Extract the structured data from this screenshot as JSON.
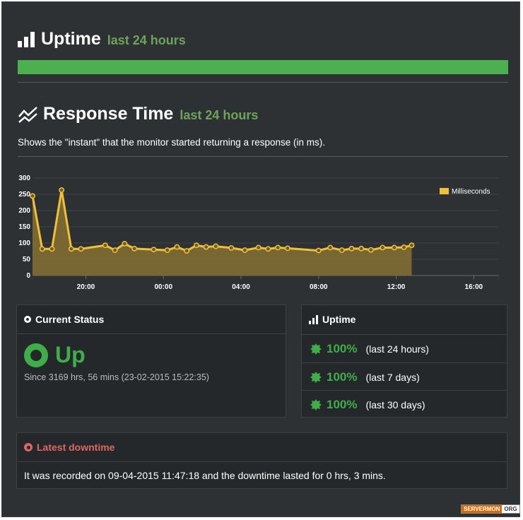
{
  "uptime_section": {
    "title": "Uptime",
    "period": "last 24 hours",
    "bar_fill_fraction": 1.0,
    "bar_color": "#4caf50"
  },
  "response_section": {
    "title": "Response Time",
    "period": "last 24 hours",
    "description": "Shows the \"instant\" that the monitor started returning a response (in ms)."
  },
  "chart_data": {
    "type": "area",
    "title": "",
    "xlabel": "",
    "ylabel": "",
    "ylim": [
      0,
      300
    ],
    "yticks": [
      "0",
      "50",
      "100",
      "150",
      "200",
      "250",
      "300"
    ],
    "xticks": [
      "20:00",
      "00:00",
      "04:00",
      "08:00",
      "12:00",
      "16:00"
    ],
    "xtick_hours": [
      20,
      24,
      28,
      32,
      36,
      40
    ],
    "xlim_hours": [
      17.25,
      41.3
    ],
    "grid": true,
    "legend_position": "top-right",
    "series": [
      {
        "name": "Milliseconds",
        "color": "#f2c037",
        "points": [
          [
            17.25,
            245
          ],
          [
            17.75,
            82
          ],
          [
            18.25,
            82
          ],
          [
            18.75,
            263
          ],
          [
            19.25,
            82
          ],
          [
            19.75,
            82
          ],
          [
            21.0,
            93
          ],
          [
            21.5,
            78
          ],
          [
            22.0,
            98
          ],
          [
            22.5,
            83
          ],
          [
            23.5,
            80
          ],
          [
            24.2,
            78
          ],
          [
            24.7,
            88
          ],
          [
            25.2,
            76
          ],
          [
            25.7,
            93
          ],
          [
            26.2,
            88
          ],
          [
            26.7,
            90
          ],
          [
            27.5,
            85
          ],
          [
            28.2,
            78
          ],
          [
            28.9,
            86
          ],
          [
            29.4,
            82
          ],
          [
            29.9,
            86
          ],
          [
            30.4,
            84
          ],
          [
            32.0,
            77
          ],
          [
            32.6,
            86
          ],
          [
            33.2,
            78
          ],
          [
            33.7,
            83
          ],
          [
            34.2,
            83
          ],
          [
            34.7,
            79
          ],
          [
            35.3,
            86
          ],
          [
            35.9,
            86
          ],
          [
            36.4,
            87
          ],
          [
            36.8,
            93
          ]
        ]
      }
    ]
  },
  "current_status": {
    "title": "Current Status",
    "status": "Up",
    "since": "Since 3169 hrs, 56 mins (23-02-2015 15:22:35)"
  },
  "uptime_panel": {
    "title": "Uptime",
    "rows": [
      {
        "percent": "100%",
        "period": "(last 24 hours)"
      },
      {
        "percent": "100%",
        "period": "(last 7 days)"
      },
      {
        "percent": "100%",
        "period": "(last 30 days)"
      }
    ]
  },
  "downtime": {
    "title": "Latest downtime",
    "text": "It was recorded on 09-04-2015 11:47:18 and the downtime lasted for 0 hrs, 3 mins."
  },
  "brand": {
    "part1": "SERVERMON",
    "part2": "ORG"
  }
}
